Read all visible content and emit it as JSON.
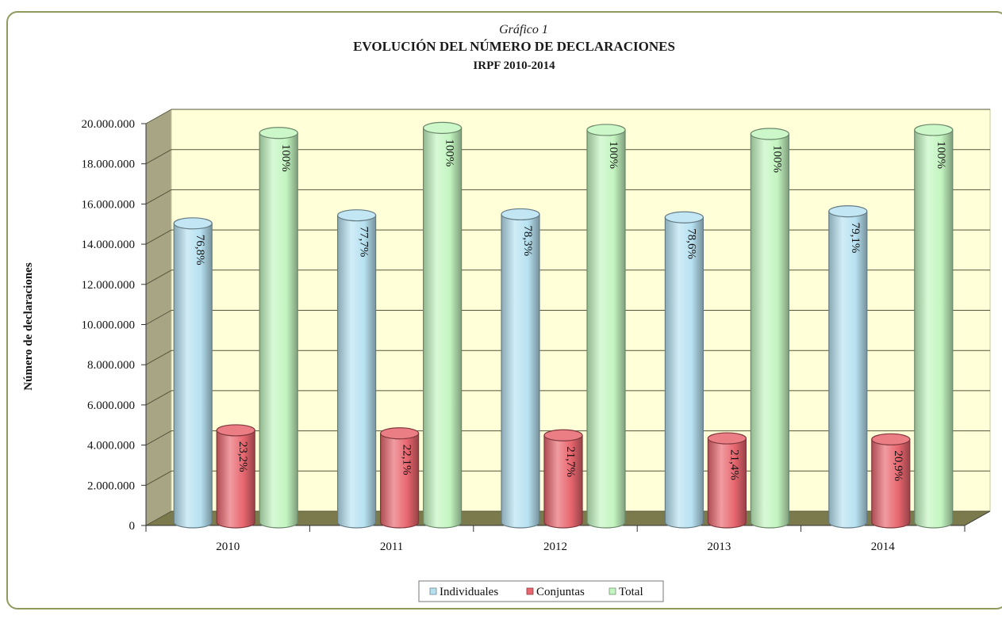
{
  "chart_data": {
    "type": "bar",
    "subtitle": "Gráfico 1",
    "title": "EVOLUCIÓN DEL NÚMERO DE DECLARACIONES",
    "title2": "IRPF 2010-2014",
    "ylabel": "Número de declaraciones",
    "xlabel": "",
    "ylim": [
      0,
      20000000
    ],
    "yticks": [
      "0",
      "2.000.000",
      "4.000.000",
      "6.000.000",
      "8.000.000",
      "10.000.000",
      "12.000.000",
      "14.000.000",
      "16.000.000",
      "18.000.000",
      "20.000.000"
    ],
    "categories": [
      "2010",
      "2011",
      "2012",
      "2013",
      "2014"
    ],
    "series": [
      {
        "name": "Individuales",
        "color": "#b7e1f1",
        "values": [
          14800000,
          15200000,
          15250000,
          15100000,
          15400000
        ],
        "labels": [
          "76,8%",
          "77,7%",
          "78,3%",
          "78,6%",
          "79,1%"
        ]
      },
      {
        "name": "Conjuntas",
        "color": "#e8666f",
        "values": [
          4500000,
          4350000,
          4250000,
          4100000,
          4050000
        ],
        "labels": [
          "23,2%",
          "22,1%",
          "21,7%",
          "21,4%",
          "20,9%"
        ]
      },
      {
        "name": "Total",
        "color": "#c3f5c0",
        "values": [
          19300000,
          19550000,
          19450000,
          19250000,
          19450000
        ],
        "labels": [
          "100%",
          "100%",
          "100%",
          "100%",
          "100%"
        ]
      }
    ],
    "legend": "bottom-center",
    "grid": true
  }
}
